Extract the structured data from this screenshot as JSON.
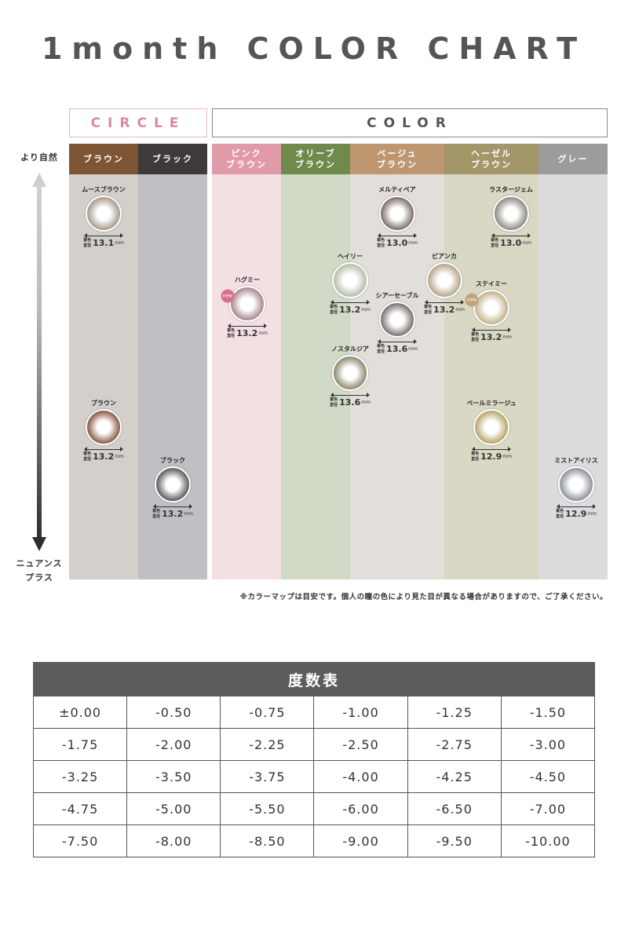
{
  "title": "1month COLOR CHART",
  "groups": {
    "circle": "CIRCLE",
    "color": "COLOR"
  },
  "axis": {
    "top": "より自然",
    "bottom": "ニュアンス\nプラス"
  },
  "columns": [
    {
      "label": "ブラウン",
      "head_color": "#7d5535",
      "body_color": "#d3cfcb"
    },
    {
      "label": "ブラック",
      "head_color": "#3e3a39",
      "body_color": "#c0bfc3"
    },
    {
      "label": "ピンク\nブラウン",
      "head_color": "#e19aa8",
      "body_color": "#f4e0e3"
    },
    {
      "label": "オリーブ\nブラウン",
      "head_color": "#6f8a4c",
      "body_color": "#d0dac6"
    },
    {
      "label": "ベージュ\nブラウン",
      "head_color": "#be9670",
      "body_color": "#e2ded9"
    },
    {
      "label": "ヘーゼル\nブラウン",
      "head_color": "#a39669",
      "body_color": "#d8d8c4"
    },
    {
      "label": "グレー",
      "head_color": "#9c9c9c",
      "body_color": "#dcdcde"
    }
  ],
  "diameter_caption": "着色直径",
  "unit": "mm",
  "new_label": "new",
  "lenses": [
    {
      "name": "ムースブラウン",
      "diameter": "13.1",
      "color": "#a89a8c"
    },
    {
      "name": "メルティベア",
      "diameter": "13.0",
      "color": "#7e6e69"
    },
    {
      "name": "ラスタージェム",
      "diameter": "13.0",
      "color": "#8e8a86"
    },
    {
      "name": "ハグミー",
      "diameter": "13.2",
      "color": "#a8888c",
      "new": true,
      "new_color": "#d9708a"
    },
    {
      "name": "ヘイリー",
      "diameter": "13.2",
      "color": "#b7bda8"
    },
    {
      "name": "ビアンカ",
      "diameter": "13.2",
      "color": "#b6a48e"
    },
    {
      "name": "シアーセーブル",
      "diameter": "13.6",
      "color": "#7c7270"
    },
    {
      "name": "ステイミー",
      "diameter": "13.2",
      "color": "#c3b28a",
      "new": true,
      "new_color": "#c4a27a"
    },
    {
      "name": "ノスタルジア",
      "diameter": "13.6",
      "color": "#8c8a6c"
    },
    {
      "name": "ブラウン",
      "diameter": "13.2",
      "color": "#8a5a46"
    },
    {
      "name": "ペールミラージュ",
      "diameter": "12.9",
      "color": "#b8a46c"
    },
    {
      "name": "ブラック",
      "diameter": "13.2",
      "color": "#5e5b5b"
    },
    {
      "name": "ミストアイリス",
      "diameter": "12.9",
      "color": "#8e949a"
    }
  ],
  "note": "※カラーマップは目安です。個人の瞳の色により見た目が異なる場合がありますので、ご了承ください。",
  "power_table": {
    "title": "度数表",
    "rows": [
      [
        "±0.00",
        "-0.50",
        "-0.75",
        "-1.00",
        "-1.25",
        "-1.50"
      ],
      [
        "-1.75",
        "-2.00",
        "-2.25",
        "-2.50",
        "-2.75",
        "-3.00"
      ],
      [
        "-3.25",
        "-3.50",
        "-3.75",
        "-4.00",
        "-4.25",
        "-4.50"
      ],
      [
        "-4.75",
        "-5.00",
        "-5.50",
        "-6.00",
        "-6.50",
        "-7.00"
      ],
      [
        "-7.50",
        "-8.00",
        "-8.50",
        "-9.00",
        "-9.50",
        "-10.00"
      ]
    ]
  }
}
